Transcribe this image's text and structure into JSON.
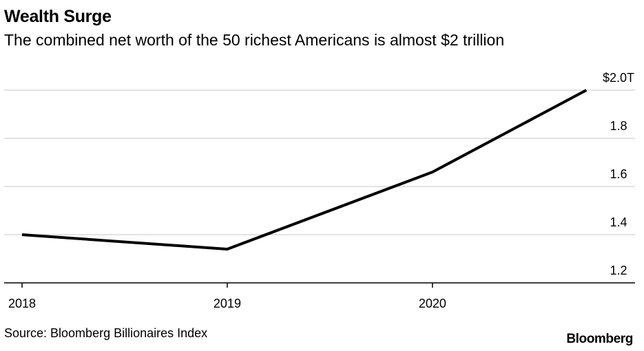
{
  "chart_data": {
    "type": "line",
    "title": "Wealth Surge",
    "subtitle": "The combined net worth of the 50 richest Americans is almost $2 trillion",
    "xlabel": "",
    "ylabel": "",
    "x": [
      2018.0,
      2019.0,
      2020.0,
      2020.75
    ],
    "series": [
      {
        "name": "Combined net worth",
        "values": [
          1.4,
          1.34,
          1.66,
          2.0
        ]
      }
    ],
    "xlim": [
      2018.0,
      2020.9
    ],
    "ylim": [
      1.2,
      2.0
    ],
    "x_ticks": [
      {
        "value": 2018,
        "label": "2018"
      },
      {
        "value": 2019,
        "label": "2019"
      },
      {
        "value": 2020,
        "label": "2020"
      }
    ],
    "y_ticks": [
      {
        "value": 2.0,
        "label": "$2.0T"
      },
      {
        "value": 1.8,
        "label": "1.8"
      },
      {
        "value": 1.6,
        "label": "1.6"
      },
      {
        "value": 1.4,
        "label": "1.4"
      },
      {
        "value": 1.2,
        "label": "1.2"
      }
    ],
    "grid": true,
    "legend": "none",
    "line_color": "#000000",
    "grid_color": "#d9d9d9",
    "axis_color": "#000000"
  },
  "footer": {
    "source": "Source: Bloomberg Billionaires Index",
    "brand": "Bloomberg"
  }
}
